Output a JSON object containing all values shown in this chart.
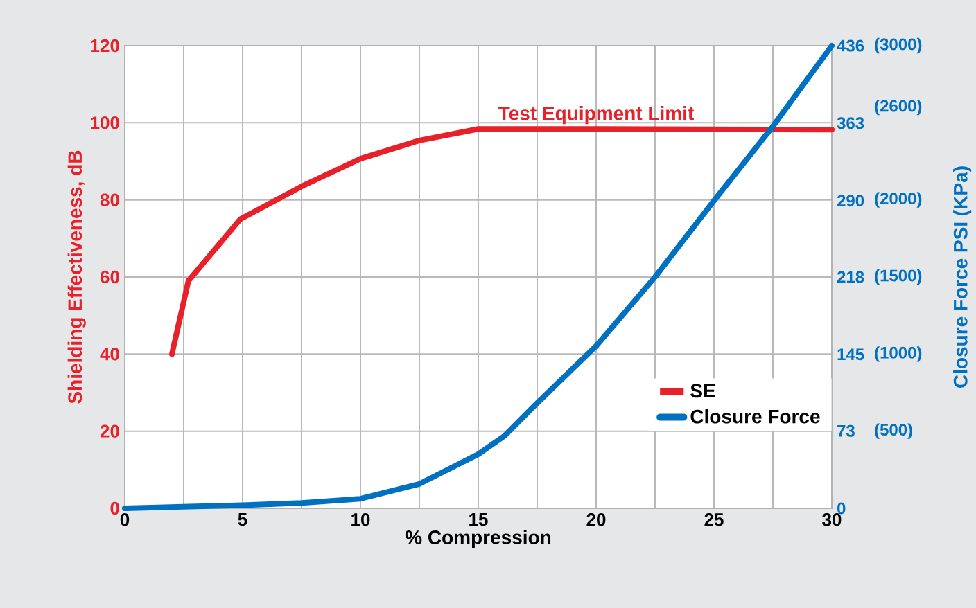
{
  "chart_data": {
    "type": "line",
    "xlabel": "% Compression",
    "ylabel": "Shielding Effectiveness, dB",
    "y2label": "Closure Force PSI (KPa)",
    "xlim": [
      0,
      30
    ],
    "xticks": [
      0,
      {
        "value": 2.5,
        "label": null
      },
      5,
      {
        "value": 7.5,
        "label": null
      },
      10,
      {
        "value": 12.5,
        "label": null
      },
      15,
      {
        "value": 17.5,
        "label": null
      },
      20,
      {
        "value": 22.5,
        "label": null
      },
      25,
      {
        "value": 27.5,
        "label": null
      },
      30
    ],
    "ylim": [
      0,
      120
    ],
    "yticks": [
      0,
      20,
      40,
      60,
      80,
      100,
      120
    ],
    "y2lim": [
      0,
      436
    ],
    "y2ticks": [
      0,
      73,
      145,
      218,
      290,
      363,
      436
    ],
    "y3lim": [
      0,
      3000
    ],
    "y3ticks": [
      {
        "value": 500,
        "label": "(500)"
      },
      {
        "value": 1000,
        "label": "(1000)"
      },
      {
        "value": 1500,
        "label": "(1500)"
      },
      {
        "value": 2000,
        "label": "(2000)"
      },
      {
        "value": 2600,
        "label": "(2600)"
      },
      {
        "value": 3000,
        "label": "(3000)"
      }
    ],
    "grid": true,
    "legend": "bottom right",
    "line_style": "solid",
    "annotations": [
      {
        "text": "Test Equipment Limit",
        "x": 20,
        "y": 98.4
      }
    ],
    "series": [
      {
        "name": "SE",
        "color": "#e8202a",
        "x": [
          2,
          2.7,
          4.9,
          7.5,
          10,
          12.5,
          15,
          20,
          25,
          30
        ],
        "values": [
          40,
          59,
          75,
          83.5,
          90.7,
          95.4,
          98.4,
          98.4,
          98.3,
          98.2
        ]
      },
      {
        "name": "Closure Force",
        "color": "#0070c0",
        "axis": "y2",
        "x": [
          0,
          5,
          7.5,
          10,
          12.5,
          15,
          16.1,
          17.4,
          20,
          22.5,
          25,
          27.5,
          30
        ],
        "values": [
          0,
          3,
          5,
          9,
          23,
          51,
          68,
          97,
          153,
          218,
          290,
          360,
          436
        ]
      }
    ]
  }
}
